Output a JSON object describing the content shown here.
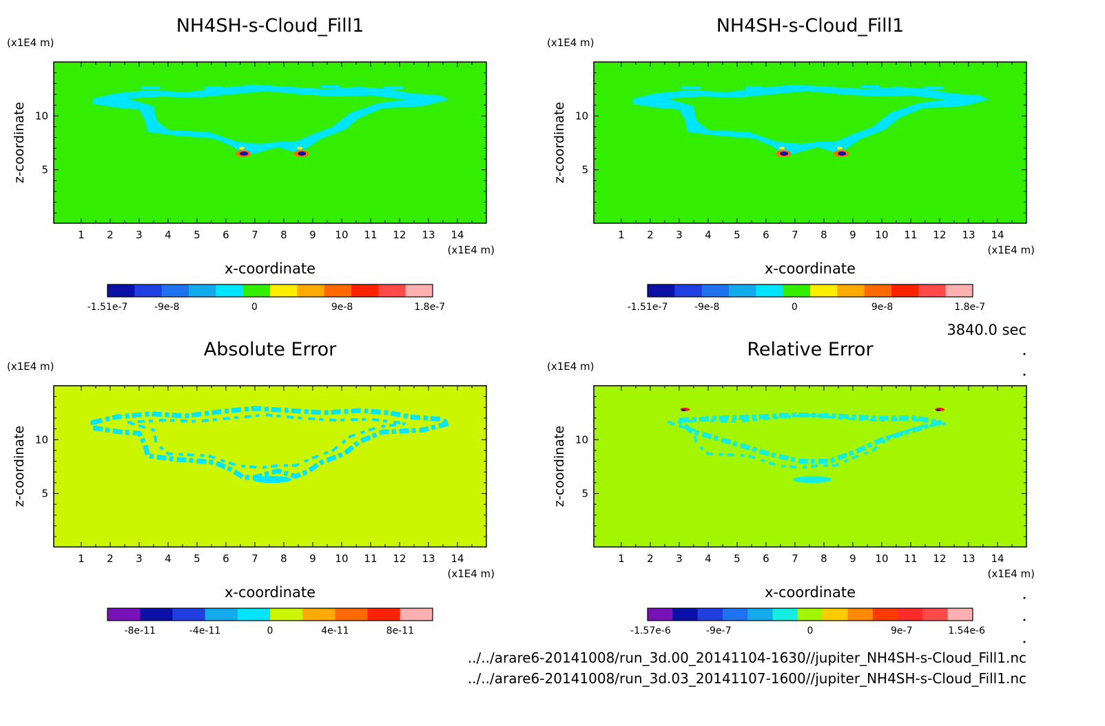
{
  "time_label": "3840.0 sec",
  "file_paths": [
    "../../arare6-20141008/run_3d.00_20141104-1630//jupiter_NH4SH-s-Cloud_Fill1.nc",
    "../../arare6-20141008/run_3d.03_20141107-1600//jupiter_NH4SH-s-Cloud_Fill1.nc"
  ],
  "chart_data": [
    {
      "type": "heatmap",
      "title": "NH4SH-s-Cloud_Fill1",
      "xlabel": "x-coordinate",
      "ylabel": "z-coordinate",
      "x_unit": "(x1E4 m)",
      "y_unit": "(x1E4 m)",
      "xlim": [
        0.05,
        15.0
      ],
      "ylim": [
        0.05,
        15.0
      ],
      "x_ticks": [
        "1",
        "2",
        "3",
        "4",
        "5",
        "6",
        "7",
        "8",
        "9",
        "10",
        "11",
        "12",
        "13",
        "14"
      ],
      "y_ticks": [
        "5",
        "10"
      ],
      "background_color": "#33ee00",
      "feature_color": "#00e5ff",
      "feature_shape": "cloud-outline",
      "hotspots": [
        {
          "x": 6.6,
          "z": 6.5
        },
        {
          "x": 8.6,
          "z": 6.5
        }
      ],
      "colorbar": {
        "colors": [
          "#0a10a8",
          "#1f3fe0",
          "#1f73f0",
          "#13aaee",
          "#00e5ff",
          "#33ee00",
          "#ffee00",
          "#ffaa00",
          "#ff6a00",
          "#ff2200",
          "#ff4a4a",
          "#ffb0b0"
        ],
        "tick_labels": [
          "-1.51e-7",
          "-9e-8",
          "0",
          "9e-8",
          "1.8e-7"
        ],
        "tick_values": [
          -1.51e-07,
          -9e-08,
          0,
          9e-08,
          1.8e-07
        ],
        "range": [
          -1.51e-07,
          1.83e-07
        ]
      }
    },
    {
      "type": "heatmap",
      "title": "NH4SH-s-Cloud_Fill1",
      "xlabel": "x-coordinate",
      "ylabel": "z-coordinate",
      "x_unit": "(x1E4 m)",
      "y_unit": "(x1E4 m)",
      "xlim": [
        0.05,
        15.0
      ],
      "ylim": [
        0.05,
        15.0
      ],
      "x_ticks": [
        "1",
        "2",
        "3",
        "4",
        "5",
        "6",
        "7",
        "8",
        "9",
        "10",
        "11",
        "12",
        "13",
        "14"
      ],
      "y_ticks": [
        "5",
        "10"
      ],
      "background_color": "#33ee00",
      "feature_color": "#00e5ff",
      "feature_shape": "cloud-outline",
      "hotspots": [
        {
          "x": 6.6,
          "z": 6.5
        },
        {
          "x": 8.6,
          "z": 6.5
        }
      ],
      "colorbar": {
        "colors": [
          "#0a10a8",
          "#1f3fe0",
          "#1f73f0",
          "#13aaee",
          "#00e5ff",
          "#33ee00",
          "#ffee00",
          "#ffaa00",
          "#ff6a00",
          "#ff2200",
          "#ff4a4a",
          "#ffb0b0"
        ],
        "tick_labels": [
          "-1.51e-7",
          "-9e-8",
          "0",
          "9e-8",
          "1.8e-7"
        ],
        "tick_values": [
          -1.51e-07,
          -9e-08,
          0,
          9e-08,
          1.8e-07
        ],
        "range": [
          -1.51e-07,
          1.83e-07
        ]
      }
    },
    {
      "type": "heatmap",
      "title": "Absolute Error",
      "xlabel": "x-coordinate",
      "ylabel": "z-coordinate",
      "x_unit": "(x1E4 m)",
      "y_unit": "(x1E4 m)",
      "xlim": [
        0.05,
        15.0
      ],
      "ylim": [
        0.05,
        15.0
      ],
      "x_ticks": [
        "1",
        "2",
        "3",
        "4",
        "5",
        "6",
        "7",
        "8",
        "9",
        "10",
        "11",
        "12",
        "13",
        "14"
      ],
      "y_ticks": [
        "5",
        "10"
      ],
      "background_color": "#ccf500",
      "feature_color": "#00e5ff",
      "feature_shape": "scattered-outline",
      "hotspots": [],
      "colorbar": {
        "colors": [
          "#7a10b8",
          "#0a10a8",
          "#1f3fe0",
          "#13aaee",
          "#00e5ff",
          "#ccf500",
          "#ffaa00",
          "#ff6a00",
          "#ff2200",
          "#ffb0b0"
        ],
        "tick_labels": [
          "-8e-11",
          "-4e-11",
          "0",
          "4e-11",
          "8e-11"
        ],
        "tick_values": [
          -8e-11,
          -4e-11,
          0,
          4e-11,
          8e-11
        ],
        "range": [
          -1e-10,
          1e-10
        ]
      }
    },
    {
      "type": "heatmap",
      "title": "Relative Error",
      "xlabel": "x-coordinate",
      "ylabel": "z-coordinate",
      "x_unit": "(x1E4 m)",
      "y_unit": "(x1E4 m)",
      "xlim": [
        0.05,
        15.0
      ],
      "ylim": [
        0.05,
        15.0
      ],
      "x_ticks": [
        "1",
        "2",
        "3",
        "4",
        "5",
        "6",
        "7",
        "8",
        "9",
        "10",
        "11",
        "12",
        "13",
        "14"
      ],
      "y_ticks": [
        "5",
        "10"
      ],
      "background_color": "#a3f500",
      "feature_color": "#13eee0",
      "feature_shape": "scattered-outline",
      "hotspots": [
        {
          "x": 3.2,
          "z": 12.8
        },
        {
          "x": 12.0,
          "z": 12.8
        }
      ],
      "colorbar": {
        "colors": [
          "#7a10b8",
          "#0a10a8",
          "#1f3fe0",
          "#1f73f0",
          "#13aaee",
          "#13eee0",
          "#a3f500",
          "#ffcc00",
          "#ff8a00",
          "#ff3a00",
          "#ff2a2a",
          "#ff4a4a",
          "#ffb0b0"
        ],
        "tick_labels": [
          "-1.57e-6",
          "-9e-7",
          "0",
          "9e-7",
          "1.54e-6"
        ],
        "tick_values": [
          -1.57e-06,
          -9e-07,
          0,
          9e-07,
          1.54e-06
        ],
        "range": [
          -1.6e-06,
          1.6e-06
        ]
      }
    }
  ]
}
